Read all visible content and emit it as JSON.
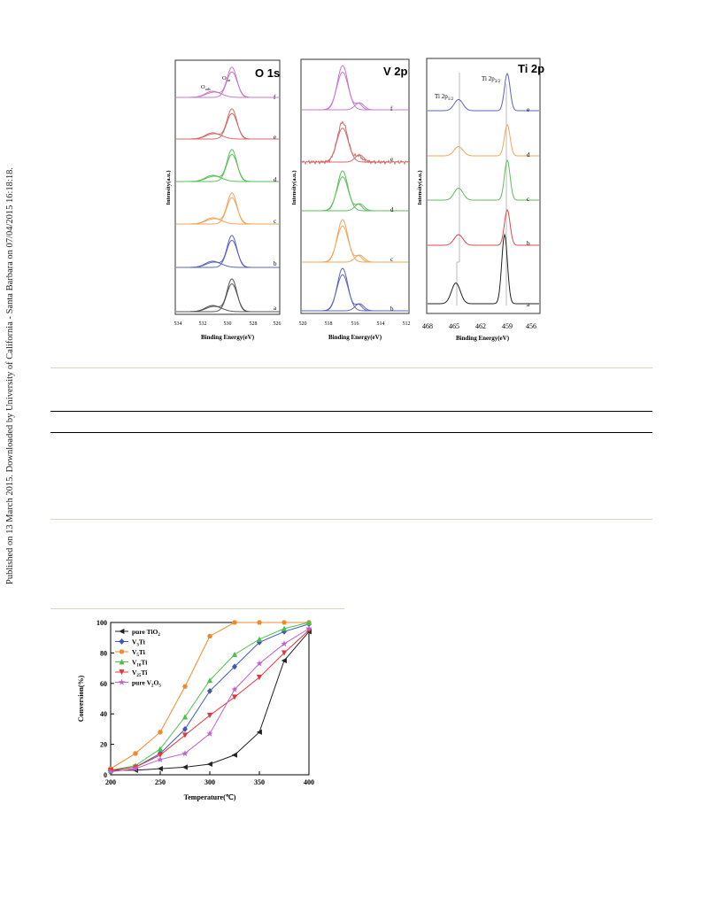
{
  "sidebar": {
    "text": "Published on 13 March 2015. Downloaded by University of California - Santa Barbara on 07/04/2015 16:18:18."
  },
  "xps_figure": {
    "y_label": "Intensity(a.u.)",
    "x_label": "Binding Energy(eV)",
    "panels": [
      {
        "title": "O 1s",
        "x_ticks": [
          "534",
          "532",
          "530",
          "528",
          "526"
        ],
        "annotations": [
          "O",
          "ads",
          "O",
          "lat"
        ],
        "curves": [
          {
            "label": "f",
            "color": "#c878c8"
          },
          {
            "label": "e",
            "color": "#d46a6a"
          },
          {
            "label": "d",
            "color": "#5bbf5b"
          },
          {
            "label": "c",
            "color": "#f0a65a"
          },
          {
            "label": "b",
            "color": "#5a64c0"
          },
          {
            "label": "a",
            "color": "#555555"
          }
        ]
      },
      {
        "title": "V 2p",
        "x_ticks": [
          "520",
          "518",
          "516",
          "514",
          "512"
        ],
        "curves": [
          {
            "label": "f",
            "color": "#c878c8"
          },
          {
            "label": "e",
            "color": "#d46a6a"
          },
          {
            "label": "d",
            "color": "#5bbf5b"
          },
          {
            "label": "c",
            "color": "#f0a65a"
          },
          {
            "label": "b",
            "color": "#5a64c0"
          }
        ]
      },
      {
        "title": "Ti 2p",
        "x_ticks": [
          "468",
          "465",
          "462",
          "459",
          "456"
        ],
        "annotations": [
          "Ti 2p",
          "1/2",
          "Ti 2p",
          "3/2"
        ],
        "curves": [
          {
            "label": "e",
            "color": "#5a64c0"
          },
          {
            "label": "d",
            "color": "#f0a65a"
          },
          {
            "label": "c",
            "color": "#5bbf5b"
          },
          {
            "label": "b",
            "color": "#d94a4a"
          },
          {
            "label": "a",
            "color": "#222222"
          }
        ]
      }
    ]
  },
  "chart_data": {
    "type": "line",
    "xlabel": "Temperature(℃)",
    "ylabel": "Conversion(%)",
    "xlim": [
      200,
      400
    ],
    "ylim": [
      0,
      100
    ],
    "x_ticks": [
      200,
      250,
      300,
      350,
      400
    ],
    "y_ticks": [
      0,
      20,
      40,
      60,
      80,
      100
    ],
    "legend_position": "top-left",
    "x": [
      200,
      225,
      250,
      275,
      300,
      325,
      350,
      375,
      400
    ],
    "series": [
      {
        "name": "pure TiO2",
        "label_main": "pure TiO",
        "label_sub": "2",
        "label_tail": "",
        "color": "#222222",
        "marker": "left-triangle",
        "values": [
          3,
          3,
          4,
          5,
          7,
          13,
          28,
          75,
          94
        ]
      },
      {
        "name": "V3Ti",
        "label_main": "V",
        "label_sub": "3",
        "label_tail": "Ti",
        "color": "#3f57b6",
        "marker": "diamond",
        "values": [
          3,
          5,
          14,
          30,
          55,
          71,
          87,
          94,
          99
        ]
      },
      {
        "name": "V5Ti",
        "label_main": "V",
        "label_sub": "5",
        "label_tail": "Ti",
        "color": "#f08a28",
        "marker": "hexagon",
        "values": [
          4,
          14,
          28,
          58,
          91,
          100,
          100,
          100,
          100
        ]
      },
      {
        "name": "V10Ti",
        "label_main": "V",
        "label_sub": "10",
        "label_tail": "Ti",
        "color": "#4cc04c",
        "marker": "triangle-up",
        "values": [
          3,
          6,
          17,
          38,
          62,
          79,
          89,
          96,
          100
        ]
      },
      {
        "name": "V25Ti",
        "label_main": "V",
        "label_sub": "25",
        "label_tail": "Ti",
        "color": "#e0383c",
        "marker": "triangle-down",
        "values": [
          3,
          5,
          13,
          26,
          39,
          51,
          64,
          80,
          95
        ]
      },
      {
        "name": "pure V2O5",
        "label_main": "pure V",
        "label_sub": "2",
        "label_tail": "O",
        "label_sub2": "5",
        "color": "#c060c8",
        "marker": "star",
        "values": [
          2,
          4,
          10,
          14,
          27,
          56,
          73,
          86,
          96
        ]
      }
    ]
  }
}
